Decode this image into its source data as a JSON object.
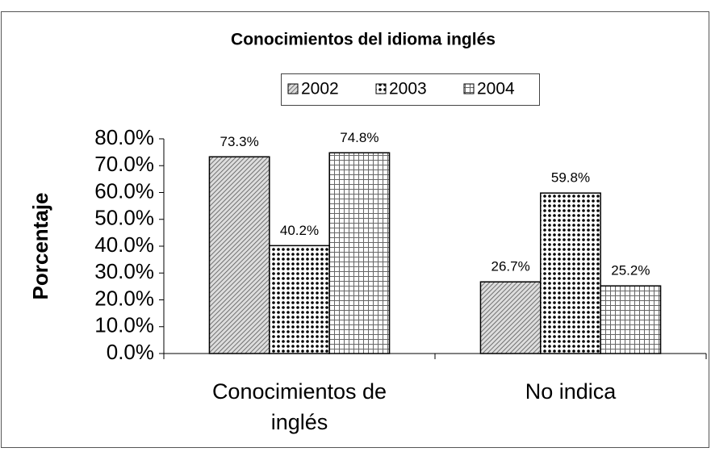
{
  "chart_data": {
    "type": "bar",
    "title": "Conocimientos del idioma inglés",
    "y_label": "Porcentaje",
    "categories": [
      "Conocimientos de inglés",
      "No indica"
    ],
    "series": [
      {
        "name": "2002",
        "color": "#555555",
        "values": [
          73.3,
          26.7
        ],
        "value_labels": [
          "73.3%",
          "26.7%"
        ]
      },
      {
        "name": "2003",
        "color": "#000000",
        "values": [
          40.2,
          59.8
        ],
        "value_labels": [
          "40.2%",
          "59.8%"
        ]
      },
      {
        "name": "2004",
        "color": "#666666",
        "values": [
          74.8,
          25.2
        ],
        "value_labels": [
          "74.8%",
          "25.2%"
        ]
      }
    ],
    "ylim": [
      0,
      80
    ],
    "yticks": [
      {
        "value": 0,
        "label": "0.0%"
      },
      {
        "value": 10,
        "label": "10.0%"
      },
      {
        "value": 20,
        "label": "20.0%"
      },
      {
        "value": 30,
        "label": "30.0%"
      },
      {
        "value": 40,
        "label": "40.0%"
      },
      {
        "value": 50,
        "label": "50.0%"
      },
      {
        "value": 60,
        "label": "60.0%"
      },
      {
        "value": 70,
        "label": "70.0%"
      },
      {
        "value": 80,
        "label": "80.0%"
      }
    ],
    "legend": "top",
    "grid": false
  }
}
